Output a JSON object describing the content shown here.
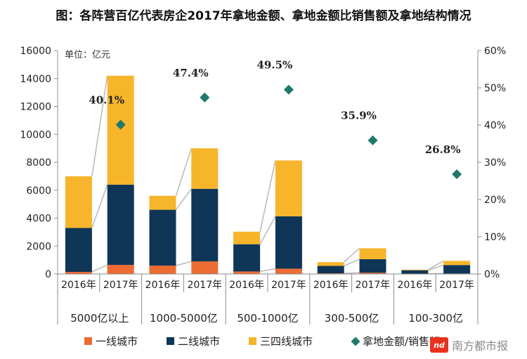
{
  "title": "图：各阵营百亿代表房企2017年拿地金额、拿地金额比销售额及拿地结构情况",
  "unit_label": "单位：亿元",
  "watermark": {
    "logo_text": "nd",
    "text": "南方都市报"
  },
  "colors": {
    "tier1": "#ee6b33",
    "tier2": "#0f3656",
    "tier34": "#f7b52b",
    "ratio_marker": "#1e7a6c",
    "connector": "#bdbdbd",
    "axis": "#8c8c8c"
  },
  "chart_data": {
    "type": "bar",
    "stacked": true,
    "groups": [
      "5000亿以上",
      "1000-5000亿",
      "500-1000亿",
      "300-500亿",
      "100-300亿"
    ],
    "years": [
      "2016年",
      "2017年"
    ],
    "series": [
      {
        "name": "一线城市",
        "values": [
          [
            150,
            650
          ],
          [
            600,
            900
          ],
          [
            180,
            380
          ],
          [
            50,
            90
          ],
          [
            10,
            30
          ]
        ]
      },
      {
        "name": "二线城市",
        "values": [
          [
            3150,
            5750
          ],
          [
            4000,
            5200
          ],
          [
            1950,
            3750
          ],
          [
            530,
            970
          ],
          [
            260,
            610
          ]
        ]
      },
      {
        "name": "三四线城市",
        "values": [
          [
            3700,
            7800
          ],
          [
            1000,
            2900
          ],
          [
            900,
            4000
          ],
          [
            270,
            780
          ],
          [
            40,
            300
          ]
        ]
      }
    ],
    "ratio_series": {
      "name": "拿地金额/销售额",
      "values": [
        40.1,
        47.4,
        49.5,
        35.9,
        26.8
      ],
      "labels": [
        "40.1%",
        "47.4%",
        "49.5%",
        "35.9%",
        "26.8%"
      ]
    },
    "y_axis": {
      "min": 0,
      "max": 16000,
      "step": 2000,
      "ticks": [
        "0",
        "2000",
        "4000",
        "6000",
        "8000",
        "10000",
        "12000",
        "14000",
        "16000"
      ]
    },
    "y2_axis": {
      "min": 0,
      "max": 60,
      "step": 10,
      "ticks": [
        "0%",
        "10%",
        "20%",
        "30%",
        "40%",
        "50%",
        "60%"
      ]
    },
    "legend": {
      "position": "bottom",
      "items": [
        "一线城市",
        "二线城市",
        "三四线城市",
        "拿地金额/销售额"
      ]
    }
  }
}
